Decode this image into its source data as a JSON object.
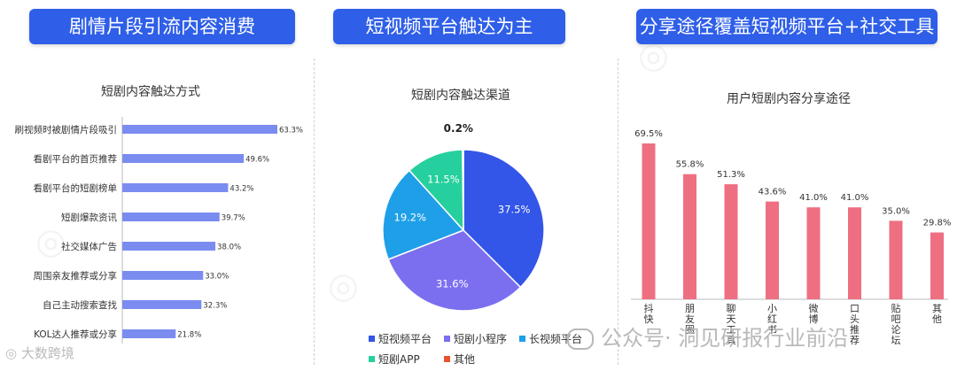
{
  "banners": {
    "left": "剧情片段引流内容消费",
    "middle": "短视频平台触达为主",
    "right": "分享途径覆盖短视频平台+社交工具"
  },
  "footer": {
    "brand": "大数跨境",
    "wechat": "公众号· 洞见研报行业前沿"
  },
  "colors": {
    "banner": "#2f5fe8",
    "left_bars": "#7b8cf0",
    "right_bars": "#ee6f82",
    "pie": [
      "#3355e8",
      "#7b6ff0",
      "#1f9fe8",
      "#26cf9e",
      "#e8522f"
    ]
  },
  "chart_data": [
    {
      "type": "bar",
      "orientation": "horizontal",
      "title": "短剧内容触达方式",
      "categories": [
        "刷视频时被剧情片段吸引",
        "看剧平台的首页推荐",
        "看剧平台的短剧榜单",
        "短剧爆款资讯",
        "社交媒体广告",
        "周围亲友推荐或分享",
        "自己主动搜索查找",
        "KOL达人推荐或分享"
      ],
      "values": [
        63.3,
        49.6,
        43.2,
        39.7,
        38.0,
        33.0,
        32.3,
        21.8
      ],
      "value_labels": [
        "63.3%",
        "49.6%",
        "43.2%",
        "39.7%",
        "38.0%",
        "33.0%",
        "32.3%",
        "21.8%"
      ],
      "xlim": [
        0,
        63.3
      ]
    },
    {
      "type": "pie",
      "title": "短剧内容触达渠道",
      "labels": [
        "短视频平台",
        "短剧小程序",
        "长视频平台",
        "短剧APP",
        "其他"
      ],
      "values": [
        37.5,
        31.6,
        19.2,
        11.5,
        0.2
      ],
      "value_labels": [
        "37.5%",
        "31.6%",
        "19.2%",
        "11.5%",
        "0.2%"
      ],
      "legend": "bottom"
    },
    {
      "type": "bar",
      "orientation": "vertical",
      "title": "用户短剧内容分享途径",
      "categories": [
        "抖\n快",
        "朋\n友\n圈",
        "聊\n天\n工\n具",
        "小\n红\n书",
        "微\n博",
        "口\n头\n推\n荐",
        "贴\n吧\n论\n坛",
        "其\n他"
      ],
      "values": [
        69.5,
        55.8,
        51.3,
        43.6,
        41.0,
        41.0,
        35.0,
        29.8
      ],
      "value_labels": [
        "69.5%",
        "55.8%",
        "51.3%",
        "43.6%",
        "41.0%",
        "41.0%",
        "35.0%",
        "29.8%"
      ],
      "ylim": [
        0,
        69.5
      ]
    }
  ]
}
